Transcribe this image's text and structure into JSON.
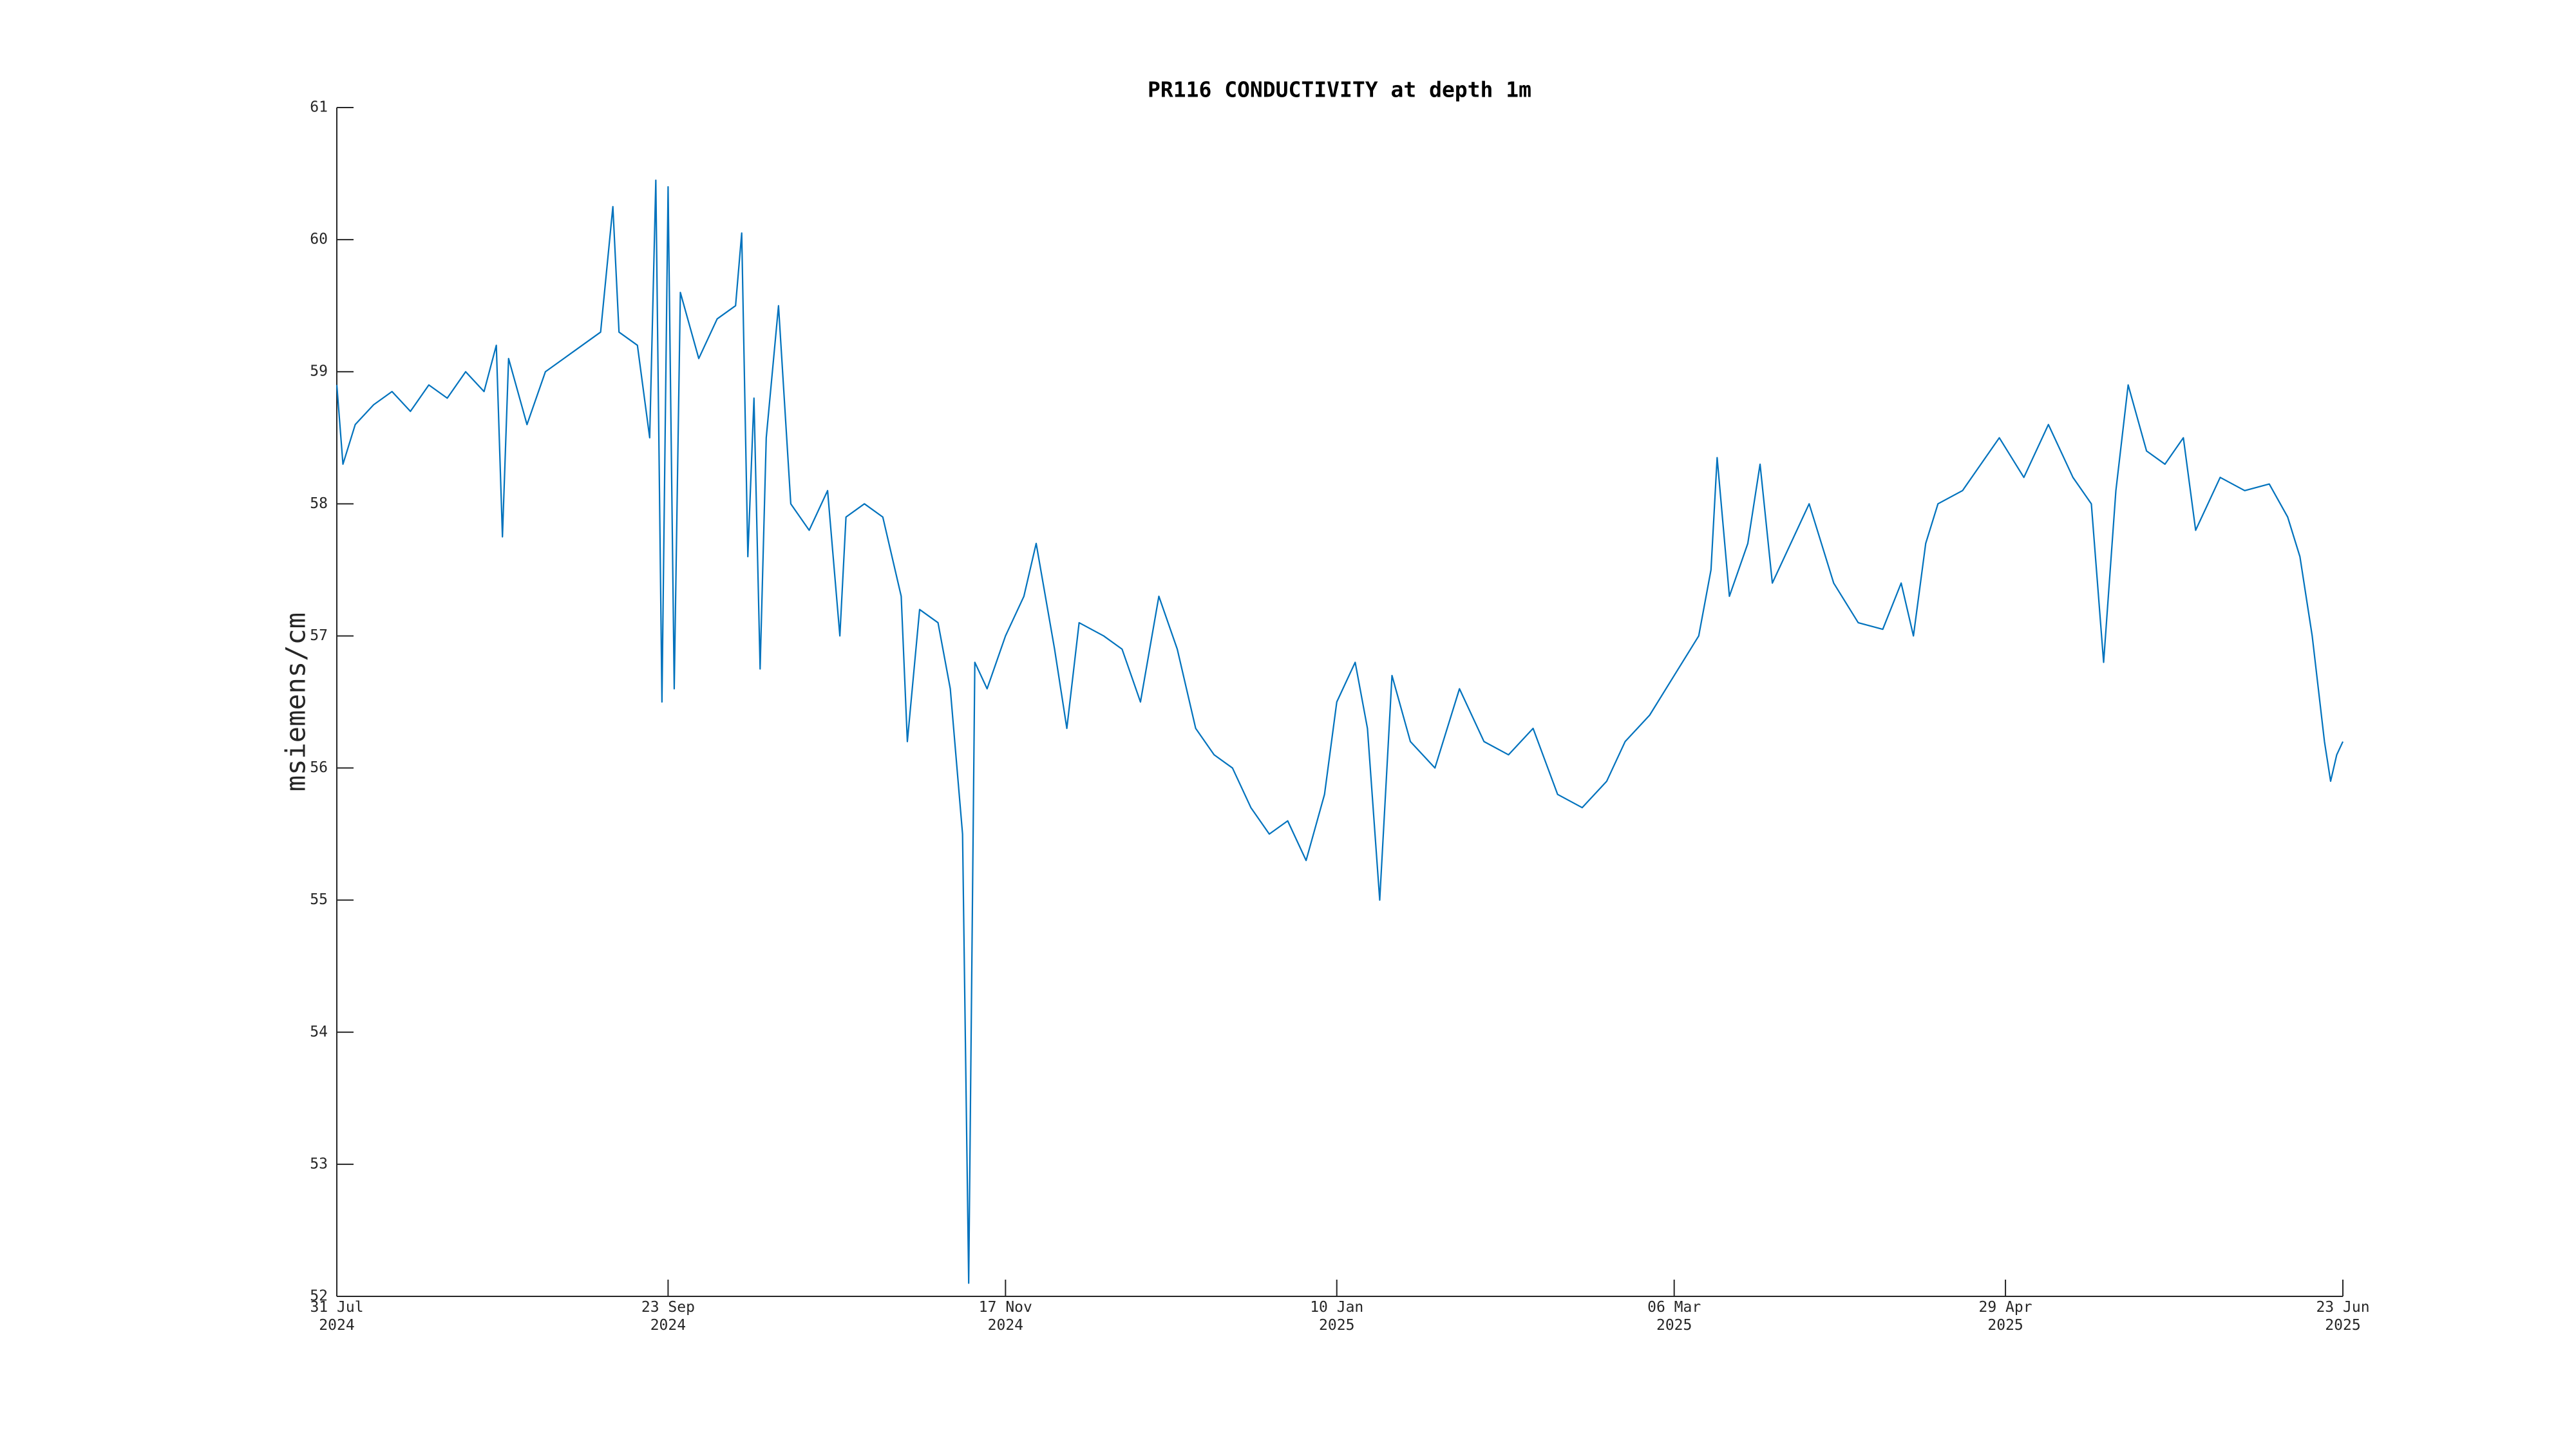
{
  "chart_data": {
    "type": "line",
    "title": "PR116 CONDUCTIVITY at depth 1m",
    "y_label": "msiemens/cm",
    "color": "#0072bd",
    "grid": false,
    "xlim": [
      "2024-07-31",
      "2025-06-23"
    ],
    "xticks": [
      {
        "value": "2024-07-31",
        "label": [
          "31 Jul",
          "2024"
        ]
      },
      {
        "value": "2024-09-23",
        "label": [
          "23 Sep",
          "2024"
        ]
      },
      {
        "value": "2024-11-17",
        "label": [
          "17 Nov",
          "2024"
        ]
      },
      {
        "value": "2025-01-10",
        "label": [
          "10 Jan",
          "2025"
        ]
      },
      {
        "value": "2025-03-06",
        "label": [
          "06 Mar",
          "2025"
        ]
      },
      {
        "value": "2025-04-29",
        "label": [
          "29 Apr",
          "2025"
        ]
      },
      {
        "value": "2025-06-23",
        "label": [
          "23 Jun",
          "2025"
        ]
      }
    ],
    "ylim": [
      52,
      61
    ],
    "yticks": [
      52,
      53,
      54,
      55,
      56,
      57,
      58,
      59,
      60,
      61
    ],
    "x": [
      "2024-07-31",
      "2024-08-01",
      "2024-08-03",
      "2024-08-06",
      "2024-08-09",
      "2024-08-12",
      "2024-08-15",
      "2024-08-18",
      "2024-08-21",
      "2024-08-24",
      "2024-08-26",
      "2024-08-27",
      "2024-08-28",
      "2024-08-31",
      "2024-09-03",
      "2024-09-06",
      "2024-09-09",
      "2024-09-12",
      "2024-09-14",
      "2024-09-15",
      "2024-09-18",
      "2024-09-20",
      "2024-09-21",
      "2024-09-22",
      "2024-09-23",
      "2024-09-24",
      "2024-09-25",
      "2024-09-28",
      "2024-10-01",
      "2024-10-04",
      "2024-10-05",
      "2024-10-06",
      "2024-10-07",
      "2024-10-08",
      "2024-10-09",
      "2024-10-11",
      "2024-10-13",
      "2024-10-16",
      "2024-10-19",
      "2024-10-21",
      "2024-10-22",
      "2024-10-25",
      "2024-10-28",
      "2024-10-31",
      "2024-11-01",
      "2024-11-03",
      "2024-11-06",
      "2024-11-08",
      "2024-11-10",
      "2024-11-11",
      "2024-11-12",
      "2024-11-14",
      "2024-11-17",
      "2024-11-20",
      "2024-11-22",
      "2024-11-25",
      "2024-11-27",
      "2024-11-29",
      "2024-12-03",
      "2024-12-06",
      "2024-12-09",
      "2024-12-12",
      "2024-12-15",
      "2024-12-18",
      "2024-12-21",
      "2024-12-24",
      "2024-12-27",
      "2024-12-30",
      "2025-01-02",
      "2025-01-05",
      "2025-01-08",
      "2025-01-10",
      "2025-01-13",
      "2025-01-15",
      "2025-01-17",
      "2025-01-19",
      "2025-01-22",
      "2025-01-26",
      "2025-01-30",
      "2025-02-03",
      "2025-02-07",
      "2025-02-11",
      "2025-02-15",
      "2025-02-19",
      "2025-02-23",
      "2025-02-26",
      "2025-03-02",
      "2025-03-06",
      "2025-03-10",
      "2025-03-12",
      "2025-03-13",
      "2025-03-15",
      "2025-03-18",
      "2025-03-20",
      "2025-03-22",
      "2025-03-28",
      "2025-04-01",
      "2025-04-05",
      "2025-04-09",
      "2025-04-12",
      "2025-04-14",
      "2025-04-16",
      "2025-04-18",
      "2025-04-22",
      "2025-04-25",
      "2025-04-28",
      "2025-05-02",
      "2025-05-06",
      "2025-05-10",
      "2025-05-13",
      "2025-05-15",
      "2025-05-17",
      "2025-05-19",
      "2025-05-22",
      "2025-05-25",
      "2025-05-28",
      "2025-05-30",
      "2025-06-03",
      "2025-06-07",
      "2025-06-11",
      "2025-06-14",
      "2025-06-16",
      "2025-06-18",
      "2025-06-19",
      "2025-06-20",
      "2025-06-21",
      "2025-06-22",
      "2025-06-23"
    ],
    "values": [
      58.9,
      58.3,
      58.6,
      58.75,
      58.85,
      58.7,
      58.9,
      58.8,
      59.0,
      58.85,
      59.2,
      57.75,
      59.1,
      58.6,
      59.0,
      59.1,
      59.2,
      59.3,
      60.25,
      59.3,
      59.2,
      58.5,
      60.45,
      56.5,
      60.4,
      56.6,
      59.6,
      59.1,
      59.4,
      59.5,
      60.05,
      57.6,
      58.8,
      56.75,
      58.5,
      59.5,
      58.0,
      57.8,
      58.1,
      57.0,
      57.9,
      58.0,
      57.9,
      57.3,
      56.2,
      57.2,
      57.1,
      56.6,
      55.5,
      52.1,
      56.8,
      56.6,
      57.0,
      57.3,
      57.7,
      56.9,
      56.3,
      57.1,
      57.0,
      56.9,
      56.5,
      57.3,
      56.9,
      56.3,
      56.1,
      56.0,
      55.7,
      55.5,
      55.6,
      55.3,
      55.8,
      56.5,
      56.8,
      56.3,
      55.0,
      56.7,
      56.2,
      56.0,
      56.6,
      56.2,
      56.1,
      56.3,
      55.8,
      55.7,
      55.9,
      56.2,
      56.4,
      56.7,
      57.0,
      57.5,
      58.35,
      57.3,
      57.7,
      58.3,
      57.4,
      58.0,
      57.4,
      57.1,
      57.05,
      57.4,
      57.0,
      57.7,
      58.0,
      58.1,
      58.3,
      58.5,
      58.2,
      58.6,
      58.2,
      58.0,
      56.8,
      58.1,
      58.9,
      58.4,
      58.3,
      58.5,
      57.8,
      58.2,
      58.1,
      58.15,
      57.9,
      57.6,
      57.0,
      56.6,
      56.2,
      55.9,
      56.1,
      56.2
    ]
  }
}
